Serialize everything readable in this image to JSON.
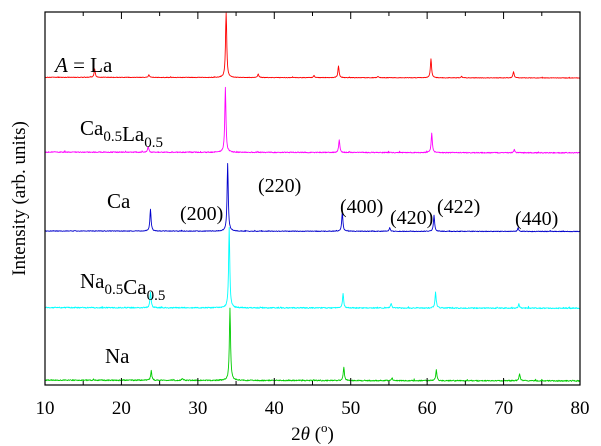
{
  "chart_data": {
    "type": "line",
    "xlabel": "2θ (o)",
    "xlabel_parts": {
      "prefix": "2",
      "theta": "θ",
      "open": " (",
      "sup": "o",
      "close": ")"
    },
    "ylabel": "Intensity (arb. units)",
    "xlim": [
      10,
      80
    ],
    "x_ticks": [
      10,
      20,
      30,
      40,
      50,
      60,
      70,
      80
    ],
    "y_ticks_shown": false,
    "grid": false,
    "legend": "none",
    "series": [
      {
        "name": "A = La",
        "label_parts": {
          "italic": "A",
          "rest": " = La"
        },
        "color": "#ff0000",
        "baseline": 0.04,
        "noise": 0.004,
        "peaks": [
          [
            16.5,
            0.12
          ],
          [
            23.6,
            0.04
          ],
          [
            33.7,
            1.0
          ],
          [
            37.9,
            0.05
          ],
          [
            45.2,
            0.03
          ],
          [
            48.4,
            0.17
          ],
          [
            53.6,
            0.02
          ],
          [
            60.5,
            0.28
          ],
          [
            64.5,
            0.02
          ],
          [
            71.3,
            0.09
          ]
        ]
      },
      {
        "name": "Ca0.5La0.5",
        "label_parts": [
          [
            "Ca",
            ""
          ],
          [
            "0.5",
            "sub"
          ],
          [
            "La",
            ""
          ],
          [
            "0.5",
            "sub"
          ]
        ],
        "color": "#ff00ff",
        "baseline": 0.045,
        "noise": 0.007,
        "peaks": [
          [
            23.5,
            0.09
          ],
          [
            33.6,
            1.0
          ],
          [
            48.5,
            0.2
          ],
          [
            60.6,
            0.3
          ],
          [
            71.4,
            0.05
          ]
        ]
      },
      {
        "name": "Ca",
        "label_parts": [
          [
            "Ca",
            ""
          ]
        ],
        "color": "#0000cc",
        "baseline": 0.03,
        "noise": 0.005,
        "peaks": [
          [
            23.8,
            0.32
          ],
          [
            33.9,
            1.0
          ],
          [
            48.9,
            0.28
          ],
          [
            55.1,
            0.05
          ],
          [
            60.9,
            0.24
          ],
          [
            71.9,
            0.05
          ]
        ]
      },
      {
        "name": "Na0.5Ca0.5",
        "label_parts": [
          [
            "Na",
            ""
          ],
          [
            "0.5",
            "sub"
          ],
          [
            "Ca",
            ""
          ],
          [
            "0.5",
            "sub"
          ]
        ],
        "color": "#00ffff",
        "baseline": 0.03,
        "noise": 0.007,
        "peaks": [
          [
            23.8,
            0.2
          ],
          [
            34.1,
            1.0
          ],
          [
            49.0,
            0.18
          ],
          [
            55.3,
            0.06
          ],
          [
            61.1,
            0.2
          ],
          [
            72.0,
            0.05
          ]
        ]
      },
      {
        "name": "Na",
        "label_parts": [
          [
            "Na",
            ""
          ]
        ],
        "color": "#00cc00",
        "baseline": 0.04,
        "noise": 0.008,
        "peaks": [
          [
            23.9,
            0.13
          ],
          [
            28.0,
            0.03
          ],
          [
            34.2,
            1.0
          ],
          [
            49.1,
            0.18
          ],
          [
            55.4,
            0.04
          ],
          [
            61.2,
            0.15
          ],
          [
            72.1,
            0.1
          ]
        ]
      }
    ],
    "annotations": [
      {
        "text": "(200)",
        "x": 25.2
      },
      {
        "text": "(220)",
        "x": 33.9
      },
      {
        "text": "(400)",
        "x": 48.9
      },
      {
        "text": "(420)",
        "x": 55.2
      },
      {
        "text": "(422)",
        "x": 61.2
      },
      {
        "text": "(440)",
        "x": 71.6
      }
    ]
  }
}
